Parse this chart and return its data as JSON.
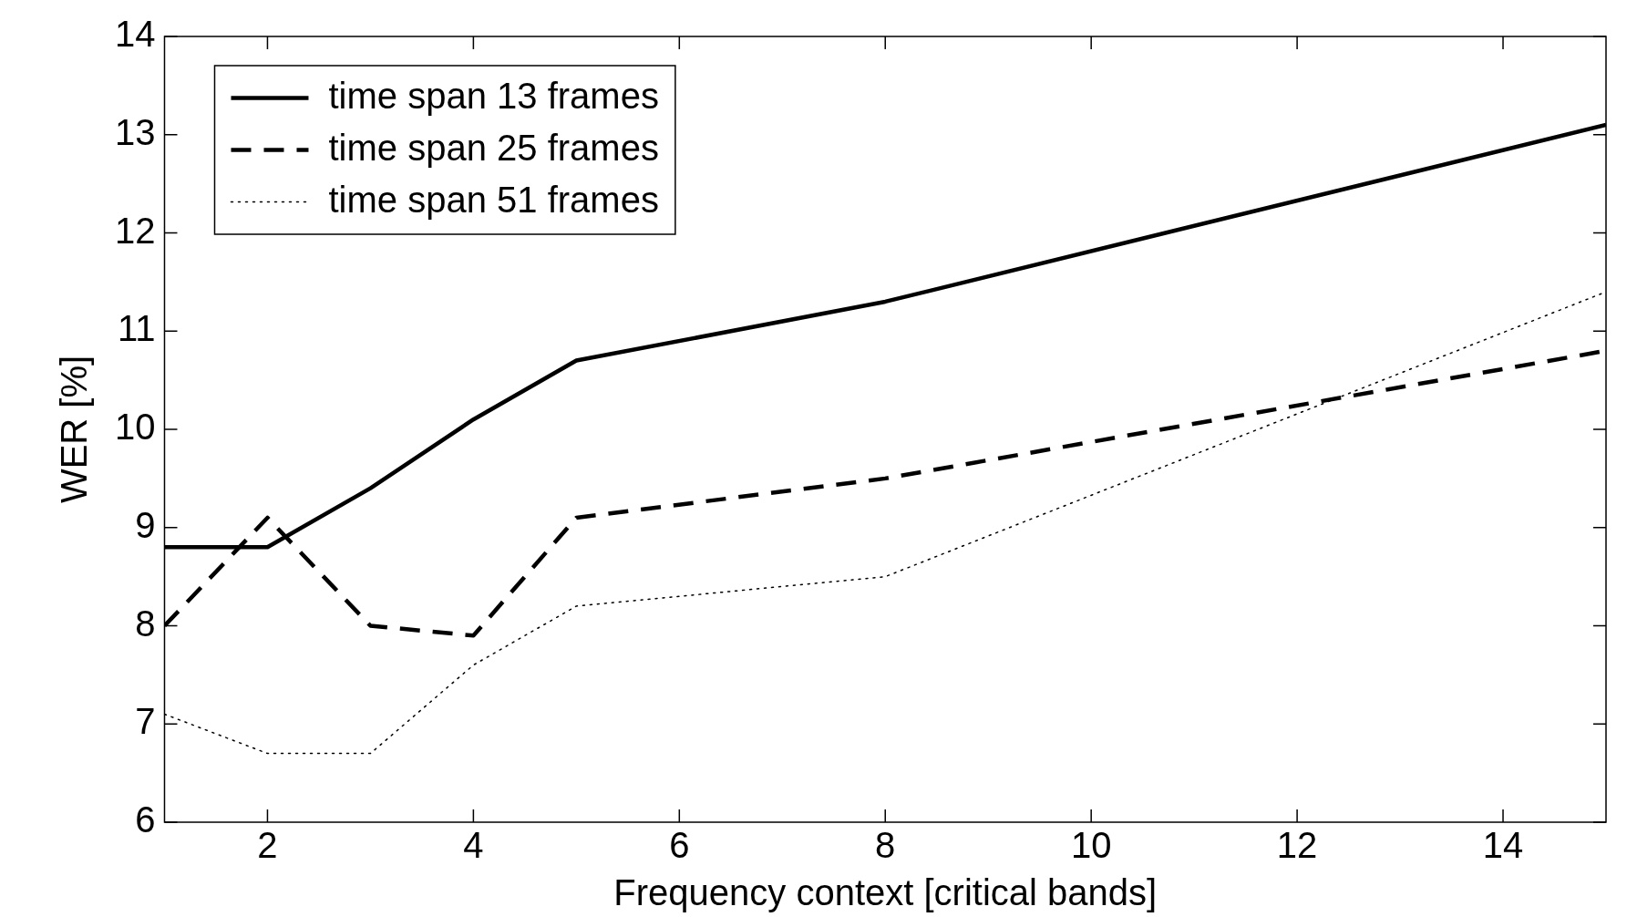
{
  "chart_data": {
    "type": "line",
    "xlabel": "Frequency context [critical bands]",
    "ylabel": "WER [%]",
    "x": [
      1,
      2,
      3,
      4,
      5,
      8,
      15
    ],
    "series": [
      {
        "name": "time span 13 frames",
        "color": "#000000",
        "line_style": "solid",
        "values": [
          8.8,
          8.8,
          9.4,
          10.1,
          10.7,
          11.3,
          13.1
        ]
      },
      {
        "name": "time span 25 frames",
        "color": "#000000",
        "line_style": "dashed",
        "values": [
          8.0,
          9.1,
          8.0,
          7.9,
          9.1,
          9.5,
          10.8
        ]
      },
      {
        "name": "time span 51 frames",
        "color": "#000000",
        "line_style": "dotted",
        "values": [
          7.1,
          6.7,
          6.7,
          7.6,
          8.2,
          8.5,
          11.4
        ]
      }
    ],
    "xlim": [
      1,
      15
    ],
    "xticks": [
      2,
      4,
      6,
      8,
      10,
      12,
      14
    ],
    "ylim": [
      6,
      14
    ],
    "yticks": [
      6,
      7,
      8,
      9,
      10,
      11,
      12,
      13,
      14
    ],
    "grid": false,
    "legend": "top left",
    "marker": "none"
  }
}
